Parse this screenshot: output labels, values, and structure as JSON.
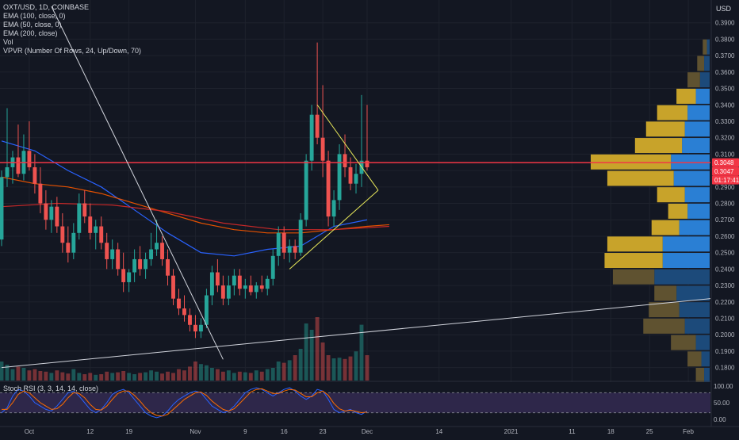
{
  "header": {
    "symbol": "OXT/USD, 1D, COINBASE",
    "indicators": [
      "EMA (100, close, 0)",
      "EMA (50, close, 0)",
      "EMA (200, close)",
      "Vol",
      "VPVR (Number Of Rows, 24, Up/Down, 70)"
    ],
    "currency": "USD"
  },
  "oscillator": {
    "label": "Stoch RSI (3, 3, 14, 14, close)"
  },
  "price_tags": [
    {
      "text": "0.3048",
      "value": 0.3048,
      "color": "#f23645"
    },
    {
      "text": "0.3047",
      "value": 0.3047,
      "color": "#f23645"
    },
    {
      "text": "01:17:41",
      "value": 0.292,
      "color": "#f23645"
    }
  ],
  "chart_data": {
    "type": "candlestick",
    "title": "OXT/USD, 1D, COINBASE",
    "y_axis": {
      "ticks": [
        "0.1800",
        "0.1900",
        "0.2000",
        "0.2100",
        "0.2200",
        "0.2300",
        "0.2400",
        "0.2500",
        "0.2600",
        "0.2700",
        "0.2800",
        "0.2900",
        "0.3000",
        "0.3100",
        "0.3200",
        "0.3300",
        "0.3400",
        "0.3500",
        "0.3600",
        "0.3700",
        "0.3800",
        "0.3900"
      ],
      "tick_values": [
        0.18,
        0.19,
        0.2,
        0.21,
        0.22,
        0.23,
        0.24,
        0.25,
        0.26,
        0.27,
        0.28,
        0.29,
        0.3,
        0.31,
        0.32,
        0.33,
        0.34,
        0.35,
        0.36,
        0.37,
        0.38,
        0.39
      ],
      "range": [
        0.175,
        0.4
      ]
    },
    "x_axis": {
      "labels": [
        "Oct",
        "12",
        "19",
        "Nov",
        "9",
        "16",
        "23",
        "Dec",
        "14",
        "2021",
        "11",
        "18",
        "25",
        "Feb"
      ],
      "label_days": [
        5,
        16,
        23,
        35,
        44,
        51,
        58,
        66,
        79,
        92,
        103,
        110,
        117,
        124
      ],
      "day_range": [
        0,
        128
      ]
    },
    "candles": [
      {
        "d": 0,
        "o": 0.258,
        "h": 0.3,
        "l": 0.254,
        "c": 0.296
      },
      {
        "d": 1,
        "o": 0.296,
        "h": 0.338,
        "l": 0.29,
        "c": 0.302
      },
      {
        "d": 2,
        "o": 0.302,
        "h": 0.312,
        "l": 0.292,
        "c": 0.308
      },
      {
        "d": 3,
        "o": 0.308,
        "h": 0.328,
        "l": 0.296,
        "c": 0.298
      },
      {
        "d": 4,
        "o": 0.298,
        "h": 0.322,
        "l": 0.294,
        "c": 0.312
      },
      {
        "d": 5,
        "o": 0.312,
        "h": 0.33,
        "l": 0.3,
        "c": 0.302
      },
      {
        "d": 6,
        "o": 0.302,
        "h": 0.31,
        "l": 0.286,
        "c": 0.292
      },
      {
        "d": 7,
        "o": 0.292,
        "h": 0.302,
        "l": 0.274,
        "c": 0.28
      },
      {
        "d": 8,
        "o": 0.28,
        "h": 0.288,
        "l": 0.264,
        "c": 0.27
      },
      {
        "d": 9,
        "o": 0.27,
        "h": 0.282,
        "l": 0.262,
        "c": 0.278
      },
      {
        "d": 10,
        "o": 0.278,
        "h": 0.284,
        "l": 0.262,
        "c": 0.266
      },
      {
        "d": 11,
        "o": 0.266,
        "h": 0.274,
        "l": 0.25,
        "c": 0.256
      },
      {
        "d": 12,
        "o": 0.256,
        "h": 0.266,
        "l": 0.244,
        "c": 0.25
      },
      {
        "d": 13,
        "o": 0.25,
        "h": 0.268,
        "l": 0.246,
        "c": 0.262
      },
      {
        "d": 14,
        "o": 0.262,
        "h": 0.286,
        "l": 0.258,
        "c": 0.28
      },
      {
        "d": 15,
        "o": 0.28,
        "h": 0.288,
        "l": 0.268,
        "c": 0.272
      },
      {
        "d": 16,
        "o": 0.272,
        "h": 0.28,
        "l": 0.258,
        "c": 0.262
      },
      {
        "d": 17,
        "o": 0.262,
        "h": 0.27,
        "l": 0.252,
        "c": 0.266
      },
      {
        "d": 18,
        "o": 0.266,
        "h": 0.272,
        "l": 0.252,
        "c": 0.256
      },
      {
        "d": 19,
        "o": 0.256,
        "h": 0.262,
        "l": 0.24,
        "c": 0.246
      },
      {
        "d": 20,
        "o": 0.246,
        "h": 0.258,
        "l": 0.24,
        "c": 0.252
      },
      {
        "d": 21,
        "o": 0.252,
        "h": 0.256,
        "l": 0.236,
        "c": 0.24
      },
      {
        "d": 22,
        "o": 0.24,
        "h": 0.25,
        "l": 0.226,
        "c": 0.232
      },
      {
        "d": 23,
        "o": 0.232,
        "h": 0.24,
        "l": 0.226,
        "c": 0.238
      },
      {
        "d": 24,
        "o": 0.238,
        "h": 0.252,
        "l": 0.232,
        "c": 0.246
      },
      {
        "d": 25,
        "o": 0.246,
        "h": 0.254,
        "l": 0.236,
        "c": 0.24
      },
      {
        "d": 26,
        "o": 0.24,
        "h": 0.25,
        "l": 0.234,
        "c": 0.246
      },
      {
        "d": 27,
        "o": 0.246,
        "h": 0.262,
        "l": 0.242,
        "c": 0.252
      },
      {
        "d": 28,
        "o": 0.252,
        "h": 0.27,
        "l": 0.248,
        "c": 0.256
      },
      {
        "d": 29,
        "o": 0.256,
        "h": 0.26,
        "l": 0.242,
        "c": 0.246
      },
      {
        "d": 30,
        "o": 0.246,
        "h": 0.252,
        "l": 0.23,
        "c": 0.236
      },
      {
        "d": 31,
        "o": 0.236,
        "h": 0.24,
        "l": 0.218,
        "c": 0.222
      },
      {
        "d": 32,
        "o": 0.222,
        "h": 0.228,
        "l": 0.212,
        "c": 0.216
      },
      {
        "d": 33,
        "o": 0.216,
        "h": 0.224,
        "l": 0.208,
        "c": 0.212
      },
      {
        "d": 34,
        "o": 0.212,
        "h": 0.216,
        "l": 0.202,
        "c": 0.206
      },
      {
        "d": 35,
        "o": 0.206,
        "h": 0.212,
        "l": 0.198,
        "c": 0.202
      },
      {
        "d": 36,
        "o": 0.202,
        "h": 0.21,
        "l": 0.198,
        "c": 0.206
      },
      {
        "d": 37,
        "o": 0.206,
        "h": 0.228,
        "l": 0.204,
        "c": 0.224
      },
      {
        "d": 38,
        "o": 0.224,
        "h": 0.242,
        "l": 0.218,
        "c": 0.238
      },
      {
        "d": 39,
        "o": 0.238,
        "h": 0.246,
        "l": 0.226,
        "c": 0.23
      },
      {
        "d": 40,
        "o": 0.23,
        "h": 0.236,
        "l": 0.218,
        "c": 0.222
      },
      {
        "d": 41,
        "o": 0.222,
        "h": 0.236,
        "l": 0.218,
        "c": 0.23
      },
      {
        "d": 42,
        "o": 0.23,
        "h": 0.24,
        "l": 0.224,
        "c": 0.236
      },
      {
        "d": 43,
        "o": 0.236,
        "h": 0.24,
        "l": 0.224,
        "c": 0.228
      },
      {
        "d": 44,
        "o": 0.228,
        "h": 0.234,
        "l": 0.222,
        "c": 0.23
      },
      {
        "d": 45,
        "o": 0.23,
        "h": 0.236,
        "l": 0.224,
        "c": 0.226
      },
      {
        "d": 46,
        "o": 0.226,
        "h": 0.232,
        "l": 0.222,
        "c": 0.23
      },
      {
        "d": 47,
        "o": 0.23,
        "h": 0.236,
        "l": 0.226,
        "c": 0.228
      },
      {
        "d": 48,
        "o": 0.228,
        "h": 0.236,
        "l": 0.224,
        "c": 0.234
      },
      {
        "d": 49,
        "o": 0.234,
        "h": 0.252,
        "l": 0.23,
        "c": 0.248
      },
      {
        "d": 50,
        "o": 0.248,
        "h": 0.266,
        "l": 0.242,
        "c": 0.262
      },
      {
        "d": 51,
        "o": 0.262,
        "h": 0.266,
        "l": 0.246,
        "c": 0.25
      },
      {
        "d": 52,
        "o": 0.25,
        "h": 0.258,
        "l": 0.244,
        "c": 0.254
      },
      {
        "d": 53,
        "o": 0.254,
        "h": 0.258,
        "l": 0.246,
        "c": 0.25
      },
      {
        "d": 54,
        "o": 0.25,
        "h": 0.274,
        "l": 0.248,
        "c": 0.27
      },
      {
        "d": 55,
        "o": 0.27,
        "h": 0.31,
        "l": 0.266,
        "c": 0.306
      },
      {
        "d": 56,
        "o": 0.306,
        "h": 0.34,
        "l": 0.3,
        "c": 0.334
      },
      {
        "d": 57,
        "o": 0.334,
        "h": 0.378,
        "l": 0.316,
        "c": 0.32
      },
      {
        "d": 58,
        "o": 0.32,
        "h": 0.352,
        "l": 0.296,
        "c": 0.306
      },
      {
        "d": 59,
        "o": 0.306,
        "h": 0.312,
        "l": 0.266,
        "c": 0.272
      },
      {
        "d": 60,
        "o": 0.272,
        "h": 0.288,
        "l": 0.266,
        "c": 0.282
      },
      {
        "d": 61,
        "o": 0.282,
        "h": 0.316,
        "l": 0.276,
        "c": 0.31
      },
      {
        "d": 62,
        "o": 0.31,
        "h": 0.322,
        "l": 0.296,
        "c": 0.302
      },
      {
        "d": 63,
        "o": 0.302,
        "h": 0.308,
        "l": 0.288,
        "c": 0.292
      },
      {
        "d": 64,
        "o": 0.292,
        "h": 0.304,
        "l": 0.286,
        "c": 0.298
      },
      {
        "d": 65,
        "o": 0.298,
        "h": 0.346,
        "l": 0.29,
        "c": 0.306
      },
      {
        "d": 66,
        "o": 0.306,
        "h": 0.34,
        "l": 0.3,
        "c": 0.302
      }
    ],
    "volume": [
      0.3,
      0.25,
      0.18,
      0.22,
      0.2,
      0.16,
      0.18,
      0.15,
      0.14,
      0.12,
      0.16,
      0.13,
      0.11,
      0.18,
      0.12,
      0.1,
      0.12,
      0.09,
      0.1,
      0.14,
      0.12,
      0.13,
      0.15,
      0.12,
      0.1,
      0.12,
      0.13,
      0.16,
      0.14,
      0.11,
      0.14,
      0.12,
      0.18,
      0.16,
      0.22,
      0.3,
      0.26,
      0.24,
      0.2,
      0.18,
      0.14,
      0.16,
      0.12,
      0.14,
      0.13,
      0.12,
      0.16,
      0.14,
      0.18,
      0.2,
      0.3,
      0.28,
      0.32,
      0.4,
      0.5,
      0.9,
      0.8,
      1.0,
      0.6,
      0.4,
      0.35,
      0.36,
      0.34,
      0.38,
      0.46,
      0.88,
      0.4
    ],
    "ema": [
      {
        "name": "EMA (50, close, 0)",
        "color": "#2962ff",
        "points": [
          [
            0,
            0.318
          ],
          [
            6,
            0.312
          ],
          [
            12,
            0.3
          ],
          [
            18,
            0.29
          ],
          [
            24,
            0.276
          ],
          [
            30,
            0.262
          ],
          [
            36,
            0.25
          ],
          [
            42,
            0.248
          ],
          [
            48,
            0.252
          ],
          [
            54,
            0.254
          ],
          [
            60,
            0.266
          ],
          [
            66,
            0.27
          ]
        ]
      },
      {
        "name": "EMA (100, close, 0)",
        "color": "#e65100",
        "points": [
          [
            0,
            0.296
          ],
          [
            6,
            0.292
          ],
          [
            12,
            0.29
          ],
          [
            18,
            0.286
          ],
          [
            24,
            0.28
          ],
          [
            30,
            0.274
          ],
          [
            36,
            0.268
          ],
          [
            42,
            0.264
          ],
          [
            48,
            0.262
          ],
          [
            54,
            0.262
          ],
          [
            60,
            0.264
          ],
          [
            66,
            0.266
          ],
          [
            70,
            0.267
          ]
        ]
      },
      {
        "name": "EMA (200, close)",
        "color": "#c62828",
        "points": [
          [
            0,
            0.278
          ],
          [
            10,
            0.28
          ],
          [
            20,
            0.279
          ],
          [
            30,
            0.275
          ],
          [
            40,
            0.268
          ],
          [
            50,
            0.264
          ],
          [
            60,
            0.264
          ],
          [
            70,
            0.266
          ]
        ]
      }
    ],
    "vpvr": [
      {
        "price": 0.375,
        "up": 2,
        "down": 3
      },
      {
        "price": 0.365,
        "up": 4,
        "down": 5
      },
      {
        "price": 0.355,
        "up": 7,
        "down": 9
      },
      {
        "price": 0.345,
        "up": 10,
        "down": 14
      },
      {
        "price": 0.335,
        "up": 16,
        "down": 22
      },
      {
        "price": 0.325,
        "up": 18,
        "down": 28
      },
      {
        "price": 0.315,
        "up": 20,
        "down": 34
      },
      {
        "price": 0.305,
        "up": 28,
        "down": 58
      },
      {
        "price": 0.295,
        "up": 26,
        "down": 48
      },
      {
        "price": 0.285,
        "up": 18,
        "down": 20
      },
      {
        "price": 0.275,
        "up": 16,
        "down": 14
      },
      {
        "price": 0.265,
        "up": 22,
        "down": 20
      },
      {
        "price": 0.255,
        "up": 34,
        "down": 40
      },
      {
        "price": 0.245,
        "up": 34,
        "down": 42
      },
      {
        "price": 0.235,
        "up": 40,
        "down": 30
      },
      {
        "price": 0.225,
        "up": 24,
        "down": 16
      },
      {
        "price": 0.215,
        "up": 22,
        "down": 22
      },
      {
        "price": 0.205,
        "up": 18,
        "down": 30
      },
      {
        "price": 0.195,
        "up": 10,
        "down": 18
      },
      {
        "price": 0.185,
        "up": 6,
        "down": 10
      },
      {
        "price": 0.175,
        "up": 4,
        "down": 6
      }
    ],
    "drawings": {
      "horizontal_line": 0.3048,
      "triangle_upper": [
        [
          57,
          0.34
        ],
        [
          68,
          0.288
        ]
      ],
      "triangle_lower": [
        [
          52,
          0.24
        ],
        [
          68,
          0.288
        ]
      ],
      "trend_down": [
        [
          9,
          0.4
        ],
        [
          40,
          0.185
        ]
      ],
      "trend_up": [
        [
          0,
          0.18
        ],
        [
          128,
          0.222
        ]
      ]
    },
    "stoch_rsi": {
      "y_ticks": [
        "100.00",
        "50.00",
        "0.00"
      ],
      "tick_values": [
        100,
        50,
        0
      ],
      "k": [
        20,
        35,
        70,
        90,
        85,
        70,
        50,
        40,
        30,
        25,
        40,
        60,
        80,
        85,
        70,
        50,
        30,
        20,
        30,
        50,
        75,
        85,
        90,
        80,
        60,
        40,
        20,
        10,
        5,
        10,
        25,
        45,
        60,
        70,
        80,
        85,
        80,
        60,
        40,
        30,
        20,
        25,
        40,
        60,
        80,
        90,
        95,
        90,
        80,
        70,
        80,
        90,
        95,
        85,
        70,
        60,
        70,
        90,
        85,
        60,
        30,
        20,
        25,
        30,
        20,
        15,
        25
      ],
      "d": [
        30,
        30,
        50,
        75,
        85,
        80,
        65,
        50,
        40,
        30,
        32,
        45,
        65,
        80,
        78,
        65,
        45,
        30,
        28,
        40,
        60,
        78,
        85,
        85,
        72,
        55,
        35,
        20,
        12,
        10,
        15,
        30,
        45,
        60,
        70,
        80,
        82,
        72,
        55,
        42,
        30,
        25,
        32,
        48,
        65,
        82,
        90,
        92,
        85,
        78,
        78,
        85,
        90,
        88,
        78,
        68,
        68,
        80,
        85,
        72,
        48,
        32,
        25,
        28,
        24,
        20,
        22
      ]
    }
  }
}
